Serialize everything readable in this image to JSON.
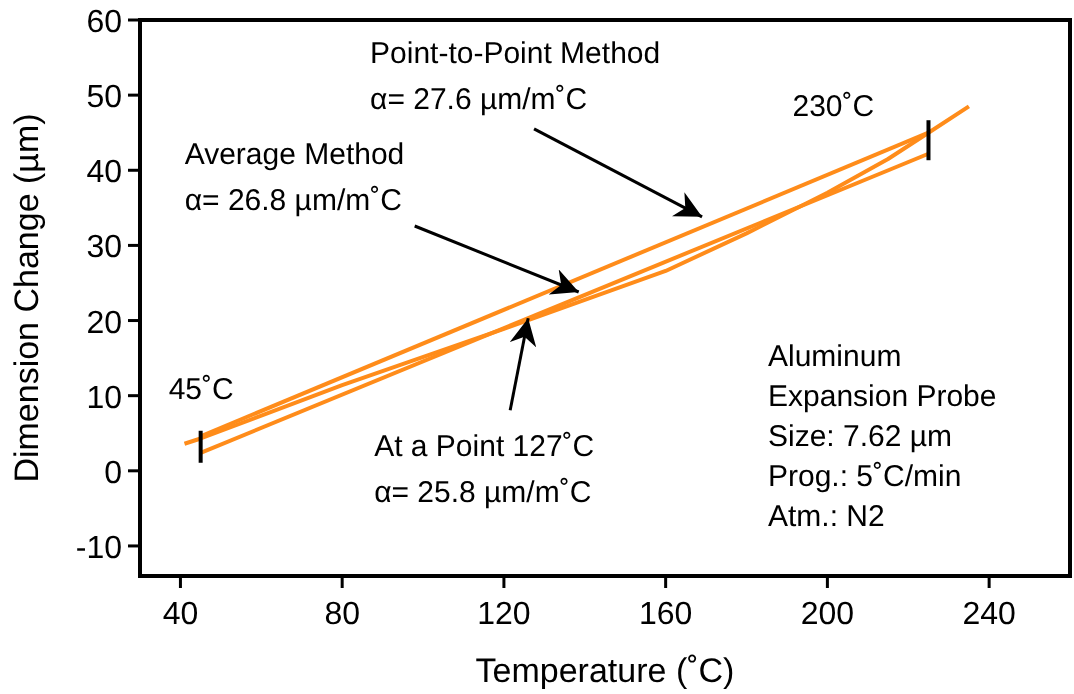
{
  "chart_data": {
    "type": "line",
    "xlabel": "Temperature (˚C)",
    "ylabel": "Dimension Change (µm)",
    "xlim": [
      30,
      260
    ],
    "xticks": [
      40,
      80,
      120,
      160,
      200,
      240
    ],
    "ylim": [
      -14,
      60
    ],
    "yticks": [
      -10,
      0,
      10,
      20,
      30,
      40,
      50,
      60
    ],
    "grid": false,
    "marker": "none",
    "line_style": "solid",
    "series": [
      {
        "color": "#ff8c1a",
        "x": [
          41,
          45,
          80,
          120,
          160,
          180,
          200,
          215,
          225,
          235
        ],
        "values": [
          3.6,
          4.3,
          11.4,
          18.9,
          26.6,
          31.6,
          37,
          41.5,
          45,
          48.5
        ]
      },
      {
        "color": "#ff8c1a",
        "x": [
          45,
          225
        ],
        "values": [
          4.6,
          45
        ]
      },
      {
        "color": "#ff8c1a",
        "x": [
          45,
          225
        ],
        "values": [
          2.4,
          42.2
        ]
      }
    ],
    "annotations": [
      {
        "text": "Point-to-Point Method\nα= 27.6 µm/m˚C",
        "x": 169,
        "y": 33.8
      },
      {
        "text": "Average Method\nα= 26.8 µm/m˚C",
        "x": 138.5,
        "y": 23.8
      },
      {
        "text": "At a Point 127˚C\nα= 25.8 µm/m˚C",
        "x": 126,
        "y": 20.3
      },
      {
        "text": "45˚C",
        "x": 45,
        "y": 3.2
      },
      {
        "text": "230˚C",
        "x": 225,
        "y": 44
      },
      "Aluminum\nExpansion Probe\nSize: 7.62 µm\nProg.: 5˚C/min\nAtm.: N2"
    ]
  }
}
